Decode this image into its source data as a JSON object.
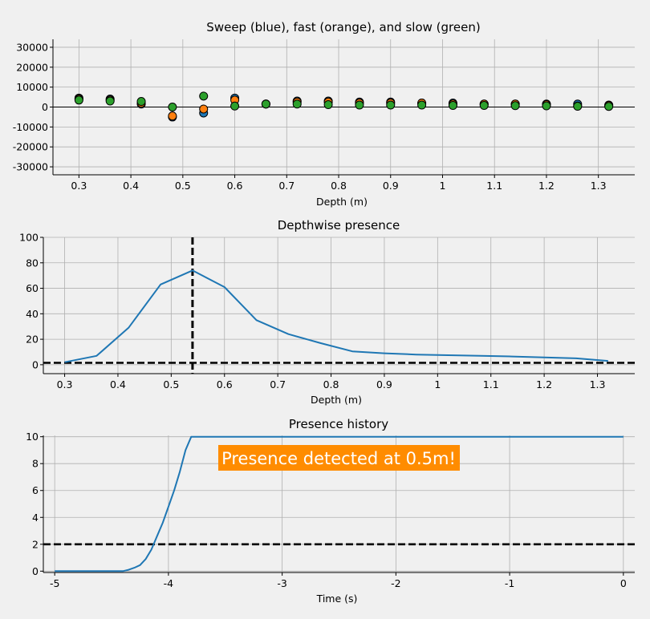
{
  "colors": {
    "background": "#f0f0f0",
    "grid": "#b0b0b0",
    "axis": "#000000",
    "line_blue": "#1f77b4",
    "sweep_blue": "#1f77b4",
    "fast_orange": "#ff7f0e",
    "slow_green": "#2ca02c",
    "banner": "#ff8c00",
    "banner_text": "#ffffff"
  },
  "chart_data": [
    {
      "type": "scatter",
      "title": "Sweep (blue), fast (orange), and slow (green)",
      "xlabel": "Depth (m)",
      "ylabel": "",
      "xlim": [
        0.25,
        1.37
      ],
      "ylim": [
        -34000,
        34000
      ],
      "xticks": [
        0.3,
        0.4,
        0.5,
        0.6,
        0.7,
        0.8,
        0.9,
        1,
        1.1,
        1.2,
        1.3
      ],
      "xtick_labels": [
        "0.3",
        "0.4",
        "0.5",
        "0.6",
        "0.7",
        "0.8",
        "0.9",
        "1",
        "1.1",
        "1.2",
        "1.3"
      ],
      "yticks": [
        -30000,
        -20000,
        -10000,
        0,
        10000,
        20000,
        30000
      ],
      "ytick_labels": [
        "-30000",
        "-20000",
        "-10000",
        "0",
        "10000",
        "20000",
        "30000"
      ],
      "grid": true,
      "x": [
        0.3,
        0.36,
        0.42,
        0.48,
        0.54,
        0.6,
        0.66,
        0.72,
        0.78,
        0.84,
        0.9,
        0.96,
        1.02,
        1.08,
        1.14,
        1.2,
        1.26,
        1.32
      ],
      "series": [
        {
          "name": "Sweep",
          "color": "#1f77b4",
          "values": [
            4500,
            4000,
            1500,
            -5000,
            -3000,
            4500,
            1500,
            3000,
            3000,
            2500,
            2500,
            2000,
            2000,
            1500,
            1500,
            1500,
            1500,
            1000
          ]
        },
        {
          "name": "fast",
          "color": "#ff7f0e",
          "values": [
            4000,
            3500,
            2000,
            -4500,
            -1000,
            3500,
            1500,
            2500,
            2500,
            2000,
            2000,
            2000,
            1500,
            1500,
            1500,
            1200,
            500,
            800
          ]
        },
        {
          "name": "slow",
          "color": "#2ca02c",
          "values": [
            3500,
            3000,
            2800,
            0,
            5500,
            500,
            1500,
            1500,
            1200,
            1000,
            1000,
            1000,
            800,
            800,
            700,
            600,
            400,
            300
          ]
        }
      ]
    },
    {
      "type": "line",
      "title": "Depthwise presence",
      "xlabel": "Depth (m)",
      "ylabel": "",
      "xlim": [
        0.26,
        1.37
      ],
      "ylim": [
        -7,
        100
      ],
      "xticks": [
        0.3,
        0.4,
        0.5,
        0.6,
        0.7,
        0.8,
        0.9,
        1,
        1.1,
        1.2,
        1.3
      ],
      "xtick_labels": [
        "0.3",
        "0.4",
        "0.5",
        "0.6",
        "0.7",
        "0.8",
        "0.9",
        "1",
        "1.1",
        "1.2",
        "1.3"
      ],
      "yticks": [
        0,
        20,
        40,
        60,
        80,
        100
      ],
      "ytick_labels": [
        "0",
        "20",
        "40",
        "60",
        "80",
        "100"
      ],
      "grid": true,
      "x": [
        0.3,
        0.36,
        0.42,
        0.48,
        0.54,
        0.6,
        0.66,
        0.72,
        0.78,
        0.84,
        0.9,
        0.96,
        1.02,
        1.08,
        1.14,
        1.2,
        1.26,
        1.32
      ],
      "values": [
        2,
        7,
        29,
        63,
        74,
        61,
        35,
        24,
        17,
        10.5,
        9,
        8,
        7.5,
        7,
        6.5,
        5.8,
        5,
        3
      ],
      "threshold": 1.5,
      "marker_x": 0.54
    },
    {
      "type": "line",
      "title": "Presence history",
      "xlabel": "Time (s)",
      "ylabel": "",
      "xlim": [
        -5.1,
        0.1
      ],
      "ylim": [
        -0.1,
        10.1
      ],
      "xticks": [
        -5,
        -4,
        -3,
        -2,
        -1,
        0
      ],
      "xtick_labels": [
        "-5",
        "-4",
        "-3",
        "-2",
        "-1",
        "0"
      ],
      "yticks": [
        0,
        2,
        4,
        6,
        8,
        10
      ],
      "ytick_labels": [
        "0",
        "2",
        "4",
        "6",
        "8",
        "10"
      ],
      "grid": true,
      "x": [
        -5,
        -4.4,
        -4.35,
        -4.3,
        -4.25,
        -4.2,
        -4.15,
        -4.1,
        -4.05,
        -4.0,
        -3.95,
        -3.9,
        -3.85,
        -3.8,
        -3.5,
        -3.0,
        -2.0,
        -1.0,
        0
      ],
      "values": [
        0,
        0,
        0.1,
        0.25,
        0.45,
        0.9,
        1.6,
        2.6,
        3.6,
        4.8,
        6.0,
        7.4,
        9.0,
        10,
        10,
        10,
        10,
        10,
        10
      ],
      "threshold": 2,
      "annotation": "Presence detected at 0.5m!"
    }
  ]
}
